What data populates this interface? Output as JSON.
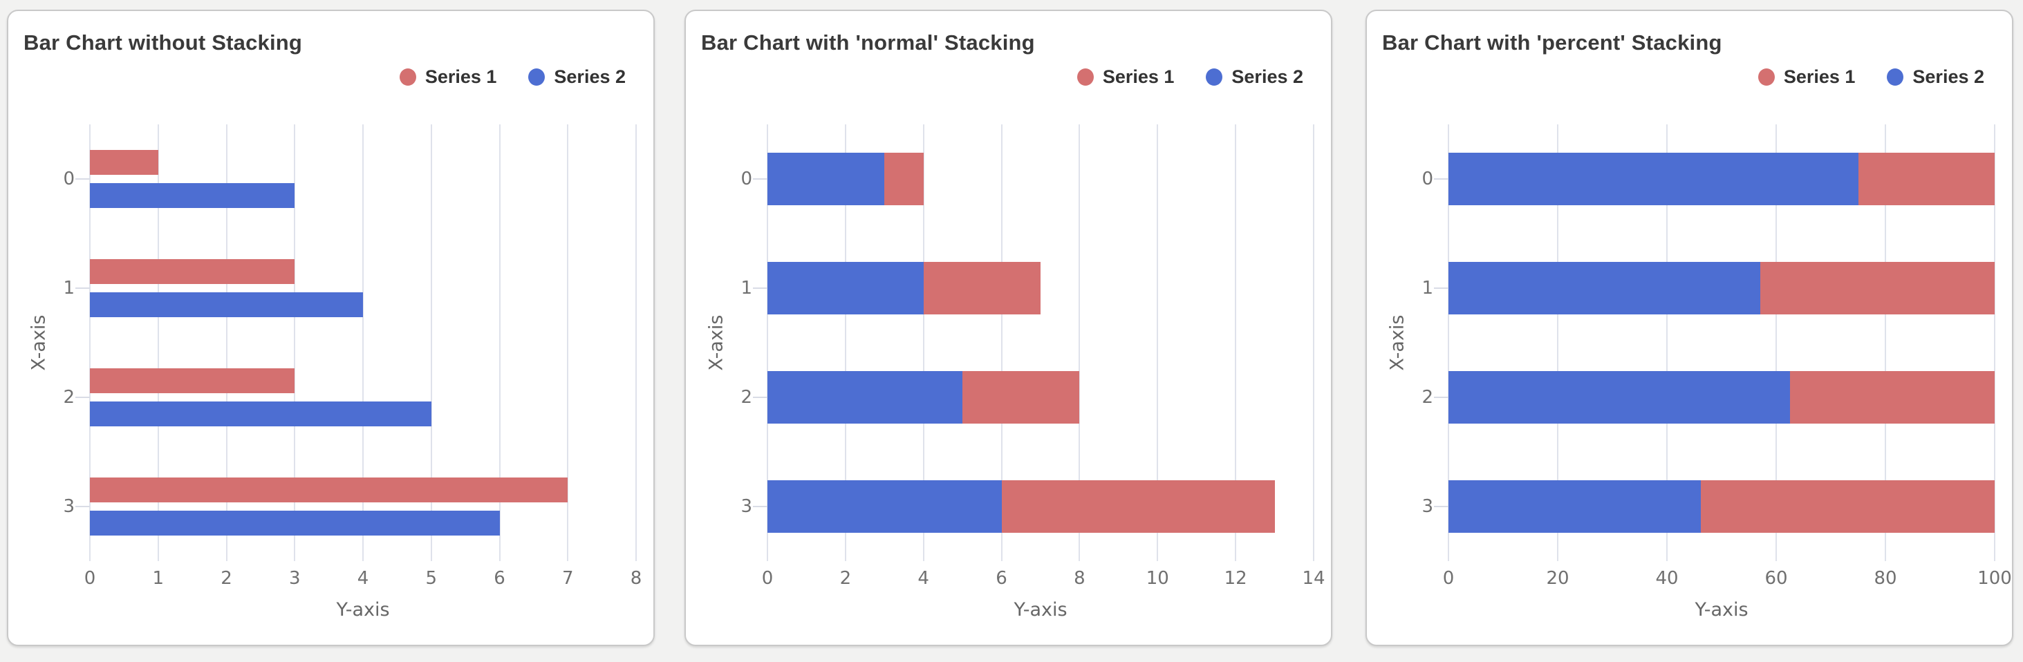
{
  "page": {
    "background_color": "#f2f2f1",
    "card_background": "#ffffff",
    "card_border_color": "#c9c9c9",
    "gridline_color": "#dfe2eb",
    "title_color": "#3a3a3a",
    "tick_label_color": "#707070",
    "axis_title_color": "#666666"
  },
  "series_colors": {
    "series1": "#d47070",
    "series2": "#4d6ed2"
  },
  "chart_data": [
    {
      "type": "bar",
      "orientation": "horizontal",
      "stacking": "none",
      "title": "Bar Chart without Stacking",
      "xlabel": "X-axis",
      "ylabel": "Y-axis",
      "categories": [
        "0",
        "1",
        "2",
        "3"
      ],
      "axis_ticks": [
        "0",
        "1",
        "2",
        "3",
        "4",
        "5",
        "6",
        "7",
        "8"
      ],
      "axis_max": 8,
      "grid": "vertical",
      "legend_position": "top-right",
      "series": [
        {
          "name": "Series 1",
          "color": "#d47070",
          "values": [
            1,
            3,
            3,
            7
          ]
        },
        {
          "name": "Series 2",
          "color": "#4d6ed2",
          "values": [
            3,
            4,
            5,
            6
          ]
        }
      ]
    },
    {
      "type": "bar",
      "orientation": "horizontal",
      "stacking": "normal",
      "title": "Bar Chart with 'normal' Stacking",
      "xlabel": "X-axis",
      "ylabel": "Y-axis",
      "categories": [
        "0",
        "1",
        "2",
        "3"
      ],
      "axis_ticks": [
        "0",
        "2",
        "4",
        "6",
        "8",
        "10",
        "12",
        "14"
      ],
      "axis_max": 14,
      "grid": "vertical",
      "legend_position": "top-right",
      "stack_order_note": "Series 2 drawn from axis origin, Series 1 stacked after it",
      "stack_totals": [
        4,
        7,
        8,
        13
      ],
      "series": [
        {
          "name": "Series 1",
          "color": "#d47070",
          "values": [
            1,
            3,
            3,
            7
          ]
        },
        {
          "name": "Series 2",
          "color": "#4d6ed2",
          "values": [
            3,
            4,
            5,
            6
          ]
        }
      ]
    },
    {
      "type": "bar",
      "orientation": "horizontal",
      "stacking": "percent",
      "title": "Bar Chart with 'percent' Stacking",
      "xlabel": "X-axis",
      "ylabel": "Y-axis",
      "categories": [
        "0",
        "1",
        "2",
        "3"
      ],
      "axis_ticks": [
        "0",
        "20",
        "40",
        "60",
        "80",
        "100"
      ],
      "axis_max": 100,
      "grid": "vertical",
      "legend_position": "top-right",
      "stack_order_note": "Series 2 drawn from axis origin, Series 1 stacked after it",
      "percent_shares": {
        "series1": [
          25,
          42.9,
          37.5,
          53.8
        ],
        "series2": [
          75,
          57.1,
          62.5,
          46.2
        ]
      },
      "series": [
        {
          "name": "Series 1",
          "color": "#d47070",
          "values": [
            1,
            3,
            3,
            7
          ]
        },
        {
          "name": "Series 2",
          "color": "#4d6ed2",
          "values": [
            3,
            4,
            5,
            6
          ]
        }
      ]
    }
  ]
}
